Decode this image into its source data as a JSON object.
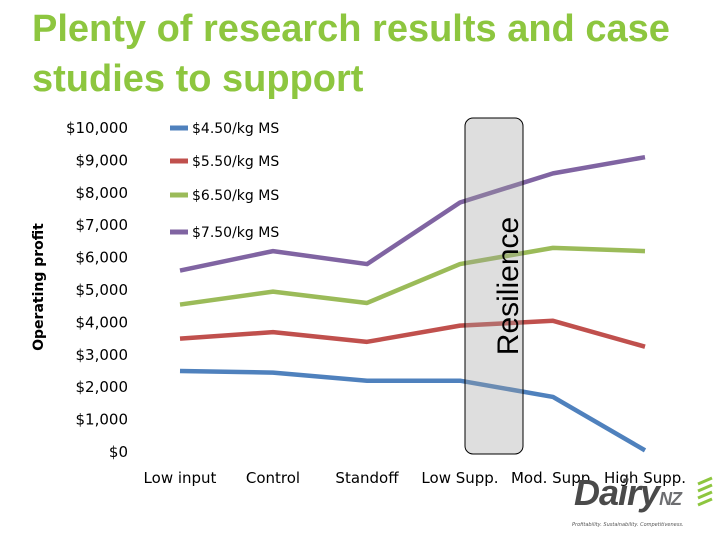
{
  "title": "Plenty of research results and case studies to support",
  "chart_data": {
    "type": "line",
    "title": "Plenty of research results and case studies to support",
    "xlabel": "",
    "ylabel": "Operating profit",
    "categories": [
      "Low input",
      "Control",
      "Standoff",
      "Low Supp.",
      "Mod. Supp.",
      "High Supp."
    ],
    "ylim": [
      0,
      10000
    ],
    "yticks": [
      "$0",
      "$1,000",
      "$2,000",
      "$3,000",
      "$4,000",
      "$5,000",
      "$6,000",
      "$7,000",
      "$8,000",
      "$9,000",
      "$10,000"
    ],
    "grid": false,
    "legend_position": "top-left",
    "series": [
      {
        "name": "$4.50/kg MS",
        "color": "#4f81bd",
        "values": [
          2500,
          2450,
          2200,
          2200,
          1700,
          50
        ]
      },
      {
        "name": "$5.50/kg MS",
        "color": "#c0504d",
        "values": [
          3500,
          3700,
          3400,
          3900,
          4050,
          3250
        ]
      },
      {
        "name": "$6.50/kg MS",
        "color": "#9bbb59",
        "values": [
          4550,
          4950,
          4600,
          5800,
          6300,
          6200
        ]
      },
      {
        "name": "$7.50/kg MS",
        "color": "#8064a2",
        "values": [
          5600,
          6200,
          5800,
          7700,
          8600,
          9100
        ]
      }
    ],
    "annotation": "Resilience"
  },
  "logo": {
    "word": "Dairy",
    "suffix": "NZ",
    "tagline": "Profitability. Sustainability. Competitiveness."
  }
}
